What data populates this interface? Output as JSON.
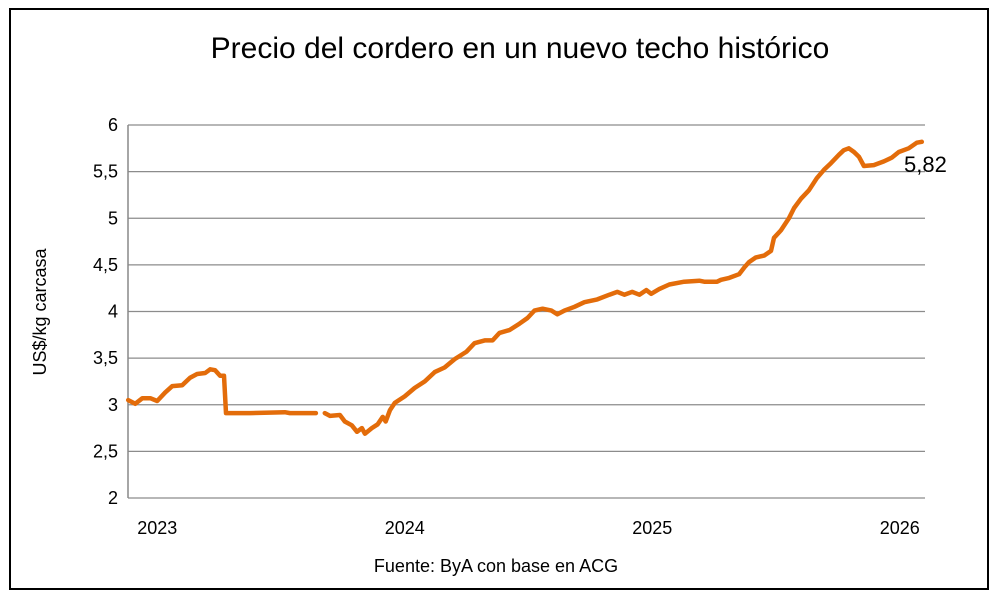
{
  "chart_data": {
    "type": "line",
    "title": "Precio del cordero en un nuevo techo histórico",
    "ylabel": "US$/kg carcasa",
    "xlabel": "",
    "source": "Fuente: ByA con base en ACG",
    "ylim": [
      2,
      6
    ],
    "xlim": [
      2022.89,
      2026.11
    ],
    "y_ticks": [
      2,
      2.5,
      3,
      3.5,
      4,
      4.5,
      5,
      5.5,
      6
    ],
    "y_tick_labels": [
      "2",
      "2,5",
      "3",
      "3,5",
      "4",
      "4,5",
      "5",
      "5,5",
      "6"
    ],
    "x_ticks": [
      2023,
      2024,
      2025,
      2026
    ],
    "x_tick_labels": [
      "2023",
      "2024",
      "2025",
      "2026"
    ],
    "grid": true,
    "legend": "none",
    "last_value_label": "5,82",
    "color": "#E36C0A",
    "series": [
      {
        "name": "Precio cordero",
        "x": [
          2022.891,
          2022.919,
          2022.948,
          2022.98,
          2023.008,
          2023.04,
          2023.069,
          2023.109,
          2023.141,
          2023.169,
          2023.202,
          2023.222,
          2023.242,
          2023.262,
          2023.278,
          2023.286,
          2023.383,
          2023.524,
          2023.544,
          2023.649,
          null,
          2023.685,
          2023.706,
          2023.746,
          2023.766,
          2023.794,
          2023.815,
          2023.835,
          2023.847,
          2023.875,
          2023.899,
          2023.919,
          2023.931,
          2023.948,
          2023.968,
          2024.008,
          2024.048,
          2024.089,
          2024.129,
          2024.169,
          2024.21,
          2024.258,
          2024.29,
          2024.331,
          2024.363,
          2024.391,
          2024.431,
          2024.472,
          2024.504,
          2024.532,
          2024.565,
          2024.601,
          2024.625,
          2024.653,
          2024.694,
          2024.734,
          2024.786,
          2024.835,
          2024.867,
          2024.895,
          2024.927,
          2024.956,
          2024.984,
          2025.004,
          2025.036,
          2025.077,
          2025.137,
          2025.198,
          2025.218,
          2025.27,
          2025.286,
          2025.319,
          2025.359,
          2025.379,
          2025.399,
          2025.427,
          2025.46,
          2025.488,
          2025.5,
          2025.528,
          2025.56,
          2025.581,
          2025.609,
          2025.641,
          2025.673,
          2025.702,
          2025.73,
          2025.762,
          2025.782,
          2025.802,
          2025.823,
          2025.843,
          2025.863,
          2025.903,
          2025.944,
          2025.976,
          2026.004,
          2026.044,
          2026.077,
          2026.097
        ],
        "y": [
          3.05,
          3.01,
          3.07,
          3.07,
          3.04,
          3.13,
          3.2,
          3.21,
          3.29,
          3.33,
          3.34,
          3.38,
          3.37,
          3.31,
          3.31,
          2.91,
          2.91,
          2.92,
          2.91,
          2.91,
          null,
          2.91,
          2.88,
          2.89,
          2.82,
          2.78,
          2.71,
          2.75,
          2.69,
          2.75,
          2.79,
          2.87,
          2.82,
          2.94,
          3.02,
          3.09,
          3.18,
          3.25,
          3.35,
          3.4,
          3.49,
          3.57,
          3.66,
          3.69,
          3.69,
          3.77,
          3.8,
          3.87,
          3.93,
          4.01,
          4.03,
          4.01,
          3.97,
          4.01,
          4.05,
          4.1,
          4.13,
          4.18,
          4.21,
          4.18,
          4.21,
          4.18,
          4.23,
          4.19,
          4.24,
          4.29,
          4.32,
          4.33,
          4.32,
          4.32,
          4.34,
          4.36,
          4.4,
          4.47,
          4.53,
          4.58,
          4.6,
          4.65,
          4.79,
          4.87,
          5.0,
          5.11,
          5.21,
          5.3,
          5.43,
          5.52,
          5.59,
          5.68,
          5.73,
          5.75,
          5.71,
          5.66,
          5.56,
          5.57,
          5.61,
          5.65,
          5.71,
          5.75,
          5.81,
          5.82
        ]
      }
    ]
  }
}
